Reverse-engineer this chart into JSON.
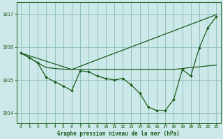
{
  "bg_color": "#cce8e8",
  "grid_color": "#88bbbb",
  "line_color": "#1a5c1a",
  "xlabel": "Graphe pression niveau de la mer (hPa)",
  "ylim": [
    1013.7,
    1017.35
  ],
  "xlim": [
    -0.5,
    23.5
  ],
  "yticks": [
    1014,
    1015,
    1016,
    1017
  ],
  "xticks": [
    0,
    1,
    2,
    3,
    4,
    5,
    6,
    7,
    8,
    9,
    10,
    11,
    12,
    13,
    14,
    15,
    16,
    17,
    18,
    19,
    20,
    21,
    22,
    23
  ],
  "series1_x": [
    0,
    1,
    2,
    3,
    4,
    5,
    6,
    7,
    8,
    9,
    10,
    11,
    12,
    13,
    14,
    15,
    16,
    17,
    18,
    19,
    20,
    21,
    22,
    23
  ],
  "series1_y": [
    1015.82,
    1015.68,
    1015.52,
    1015.08,
    1014.95,
    1014.82,
    1014.68,
    1015.28,
    1015.25,
    1015.12,
    1015.05,
    1015.0,
    1015.05,
    1014.85,
    1014.6,
    1014.18,
    1014.08,
    1014.08,
    1014.42,
    1015.32,
    1015.12,
    1015.98,
    1016.58,
    1016.92
  ],
  "series2_x": [
    0,
    1,
    2,
    3,
    4,
    5,
    6,
    7,
    8,
    9,
    10,
    11,
    12,
    13,
    14,
    15,
    16,
    17,
    18,
    19,
    20,
    21,
    22,
    23
  ],
  "series2_y": [
    1015.82,
    1015.68,
    1015.52,
    1015.38,
    1015.35,
    1015.33,
    1015.32,
    1015.32,
    1015.32,
    1015.32,
    1015.32,
    1015.32,
    1015.32,
    1015.32,
    1015.32,
    1015.32,
    1015.32,
    1015.32,
    1015.32,
    1015.35,
    1015.38,
    1015.4,
    1015.43,
    1015.45
  ],
  "series3_x": [
    0,
    6,
    23
  ],
  "series3_y": [
    1015.82,
    1015.32,
    1016.98
  ]
}
